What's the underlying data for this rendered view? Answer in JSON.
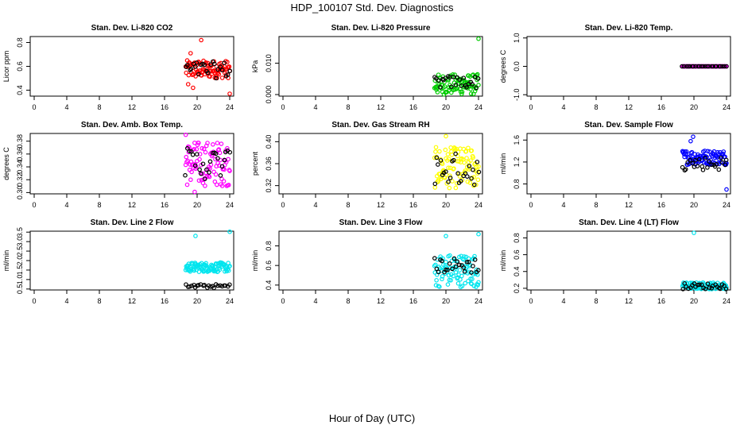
{
  "figure": {
    "title": "HDP_100107  Std. Dev. Diagnostics",
    "xlabel": "Hour of Day (UTC)"
  },
  "chart_data": [
    {
      "type": "scatter",
      "title": "Stan. Dev. Li-820 CO2",
      "ylabel": "Licor ppm",
      "xlim": [
        0,
        24
      ],
      "ylim": [
        0.35,
        0.85
      ],
      "xticks": [
        0,
        4,
        8,
        12,
        16,
        20,
        24
      ],
      "yticks": [
        0.4,
        0.6,
        0.8
      ],
      "ytick_labels": [
        "0.4",
        "0.6",
        "0.8"
      ],
      "color": "#ff0000",
      "x_range": [
        18.6,
        24.0
      ],
      "y_band": [
        0.5,
        0.65
      ],
      "black_y_band": [
        0.5,
        0.64
      ],
      "outliers": [
        [
          20.5,
          0.82
        ],
        [
          19.2,
          0.71
        ],
        [
          19.5,
          0.42
        ],
        [
          24.0,
          0.37
        ],
        [
          18.9,
          0.45
        ]
      ]
    },
    {
      "type": "scatter",
      "title": "Stan. Dev. Li-820 Pressure",
      "ylabel": "kPa",
      "xlim": [
        0,
        24
      ],
      "ylim": [
        -0.0005,
        0.0185
      ],
      "xticks": [
        0,
        4,
        8,
        12,
        16,
        20,
        24
      ],
      "yticks": [
        0.0,
        0.01
      ],
      "ytick_labels": [
        "0.000",
        "0.010"
      ],
      "color": "#00cc00",
      "x_range": [
        18.6,
        24.0
      ],
      "y_band": [
        0.0,
        0.0065
      ],
      "black_y_band": [
        0.002,
        0.006
      ],
      "outliers": [
        [
          24.0,
          0.0178
        ]
      ]
    },
    {
      "type": "scatter",
      "title": "Stan. Dev. Li-820 Temp.",
      "ylabel": "degrees C",
      "xlim": [
        0,
        24
      ],
      "ylim": [
        -1.05,
        1.05
      ],
      "xticks": [
        0,
        4,
        8,
        12,
        16,
        20,
        24
      ],
      "yticks": [
        -1.0,
        0.0,
        1.0
      ],
      "ytick_labels": [
        "-1.0",
        "0.0",
        "1.0"
      ],
      "color": "#ff00ff",
      "x_range": [
        18.6,
        24.0
      ],
      "y_band": [
        0.0,
        0.0
      ],
      "black_y_band": [
        0.0,
        0.0
      ],
      "outliers": []
    },
    {
      "type": "scatter",
      "title": "Stan. Dev. Amb. Box Temp.",
      "ylabel": "degrees C",
      "xlim": [
        0,
        24
      ],
      "ylim": [
        0.298,
        0.392
      ],
      "xticks": [
        0,
        4,
        8,
        12,
        16,
        20,
        24
      ],
      "yticks": [
        0.3,
        0.32,
        0.34,
        0.36,
        0.38
      ],
      "ytick_labels": [
        "0.30",
        "0.32",
        "0.34",
        "0.36",
        "0.38"
      ],
      "color": "#ff00ff",
      "x_range": [
        18.6,
        24.0
      ],
      "y_band": [
        0.31,
        0.38
      ],
      "black_y_band": [
        0.32,
        0.37
      ],
      "outliers": [
        [
          19.7,
          0.301
        ],
        [
          18.6,
          0.39
        ]
      ]
    },
    {
      "type": "scatter",
      "title": "Stan. Dev. Gas Stream RH",
      "ylabel": "percent",
      "xlim": [
        0,
        24
      ],
      "ylim": [
        0.305,
        0.415
      ],
      "xticks": [
        0,
        4,
        8,
        12,
        16,
        20,
        24
      ],
      "yticks": [
        0.32,
        0.36,
        0.4
      ],
      "ytick_labels": [
        "0.32",
        "0.36",
        "0.40"
      ],
      "color": "#ffff00",
      "x_range": [
        18.6,
        24.0
      ],
      "y_band": [
        0.315,
        0.39
      ],
      "black_y_band": [
        0.32,
        0.38
      ],
      "outliers": [
        [
          20.0,
          0.41
        ]
      ]
    },
    {
      "type": "scatter",
      "title": "Stan. Dev. Sample Flow",
      "ylabel": "ml/min",
      "xlim": [
        0,
        24
      ],
      "ylim": [
        0.62,
        1.72
      ],
      "xticks": [
        0,
        4,
        8,
        12,
        16,
        20,
        24
      ],
      "yticks": [
        0.8,
        1.2,
        1.6
      ],
      "ytick_labels": [
        "0.8",
        "1.2",
        "1.6"
      ],
      "color": "#0000ff",
      "x_range": [
        18.6,
        24.0
      ],
      "y_band": [
        1.15,
        1.42
      ],
      "black_y_band": [
        1.05,
        1.3
      ],
      "outliers": [
        [
          19.9,
          1.66
        ],
        [
          24.0,
          0.7
        ],
        [
          19.6,
          1.58
        ]
      ]
    },
    {
      "type": "scatter",
      "title": "Stan. Dev. Line 2 Flow",
      "ylabel": "ml/min",
      "xlim": [
        0,
        24
      ],
      "ylim": [
        0.45,
        3.55
      ],
      "xticks": [
        0,
        4,
        8,
        12,
        16,
        20,
        24
      ],
      "yticks": [
        0.5,
        1.0,
        1.5,
        2.0,
        2.5,
        3.0,
        3.5
      ],
      "ytick_labels": [
        "0.5",
        "1.0",
        "1.5",
        "2.0",
        "2.5",
        "3.0",
        "3.5"
      ],
      "color": "#00e5ee",
      "x_range": [
        18.6,
        24.0
      ],
      "y_band": [
        1.4,
        1.9
      ],
      "black_y_band": [
        0.55,
        0.75
      ],
      "outliers": [
        [
          19.8,
          3.3
        ],
        [
          24.0,
          3.52
        ]
      ]
    },
    {
      "type": "scatter",
      "title": "Stan. Dev. Line 3 Flow",
      "ylabel": "ml/min",
      "xlim": [
        0,
        24
      ],
      "ylim": [
        0.35,
        0.95
      ],
      "xticks": [
        0,
        4,
        8,
        12,
        16,
        20,
        24
      ],
      "yticks": [
        0.4,
        0.6,
        0.8
      ],
      "ytick_labels": [
        "0.4",
        "0.6",
        "0.8"
      ],
      "color": "#00e5ee",
      "x_range": [
        18.6,
        24.0
      ],
      "y_band": [
        0.38,
        0.72
      ],
      "black_y_band": [
        0.52,
        0.68
      ],
      "outliers": [
        [
          20.0,
          0.9
        ],
        [
          24.0,
          0.92
        ]
      ]
    },
    {
      "type": "scatter",
      "title": "Stan. Dev. Line 4 (LT) Flow",
      "ylabel": "ml/min",
      "xlim": [
        0,
        24
      ],
      "ylim": [
        0.18,
        0.88
      ],
      "xticks": [
        0,
        4,
        8,
        12,
        16,
        20,
        24
      ],
      "yticks": [
        0.2,
        0.4,
        0.6,
        0.8
      ],
      "ytick_labels": [
        "0.2",
        "0.4",
        "0.6",
        "0.8"
      ],
      "color": "#00e5ee",
      "x_range": [
        18.6,
        24.0
      ],
      "y_band": [
        0.19,
        0.27
      ],
      "black_y_band": [
        0.19,
        0.26
      ],
      "outliers": [
        [
          20.0,
          0.86
        ]
      ]
    }
  ]
}
